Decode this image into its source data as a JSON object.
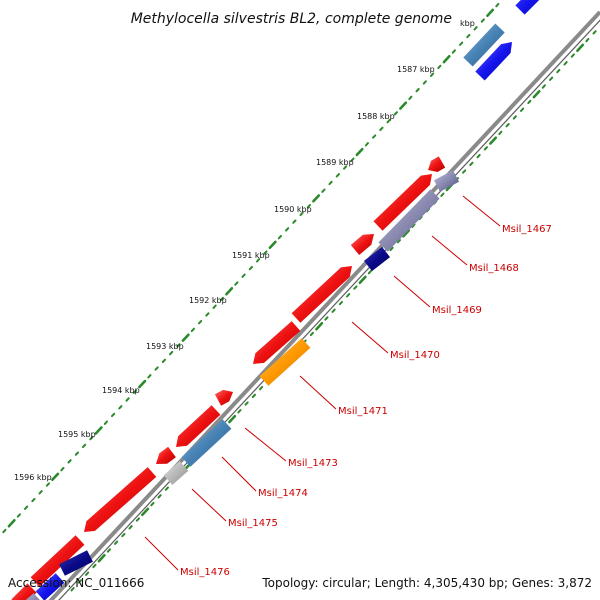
{
  "title": "Methylocella silvestris BL2, complete genome",
  "footer": {
    "accession": "Accession: NC_011666",
    "summary": "Topology: circular; Length: 4,305,430 bp; Genes: 3,872"
  },
  "scale_labels": [
    "kbp",
    "1587 kbp",
    "1588 kbp",
    "1589 kbp",
    "1590 kbp",
    "1591 kbp",
    "1592 kbp",
    "1593 kbp",
    "1594 kbp",
    "1595 kbp",
    "1596 kbp"
  ],
  "gene_labels": [
    "Msil_1467",
    "Msil_1468",
    "Msil_1469",
    "Msil_1470",
    "Msil_1471",
    "Msil_1473",
    "Msil_1474",
    "Msil_1475",
    "Msil_1476"
  ],
  "colors": {
    "backbone": "#888888",
    "forward_cds": "#ee1111",
    "reverse_cds_dark": "#0a0a8a",
    "reverse_cds_blue": "#1515ee",
    "steel_blue": "#4682b4",
    "orange": "#ff9900",
    "gray": "#b8b8b8",
    "purple_gray": "#8a8ab0",
    "tick_green": "#2a8a2a",
    "label_red": "#cc0000"
  }
}
